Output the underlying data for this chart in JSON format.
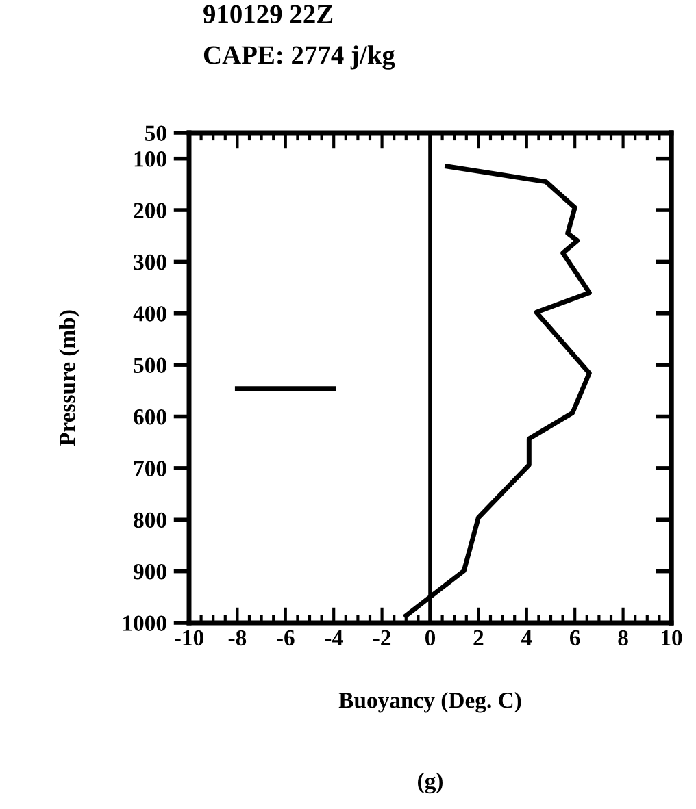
{
  "chart_data": {
    "type": "line",
    "title": "910129 22Z",
    "subtitle": "CAPE: 2774 j/kg",
    "xlabel": "Buoyancy (Deg. C)",
    "ylabel": "Pressure (mb)",
    "annotations": [
      "(g)"
    ],
    "series": [
      {
        "color": "#000000",
        "x": [
          0.7,
          4.8,
          6.0,
          5.7,
          6.1,
          5.5,
          6.6,
          4.4,
          6.6,
          5.9,
          4.1,
          4.1,
          2.0,
          1.4,
          -1.0
        ],
        "values": [
          115,
          145,
          195,
          245,
          259,
          283,
          360,
          398,
          516,
          593,
          643,
          694,
          796,
          899,
          986
        ]
      },
      {
        "color": "#000000",
        "x": [
          -8.0,
          -4.0
        ],
        "values": [
          546,
          546
        ]
      }
    ],
    "ref_lines": [
      {
        "axis": "x",
        "value": 0,
        "color": "#000000"
      }
    ],
    "xlim": [
      -10,
      10
    ],
    "xticks": [
      -10,
      -8,
      -6,
      -4,
      -2,
      0,
      2,
      4,
      6,
      8,
      10
    ],
    "ylim": [
      1000,
      50
    ],
    "yticks": [
      50,
      100,
      200,
      300,
      400,
      500,
      600,
      700,
      800,
      900,
      1000
    ],
    "grid": false,
    "legend": false,
    "marker": "none",
    "line_style": "solid"
  }
}
